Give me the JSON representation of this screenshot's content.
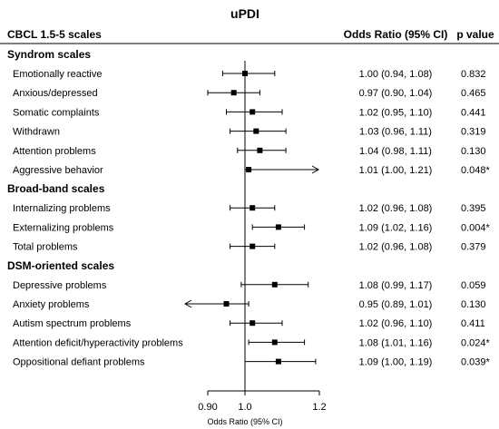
{
  "chart_data": {
    "type": "forest",
    "title": "uPDI",
    "columns": {
      "scales": "CBCL 1.5-5 scales",
      "or": "Odds Ratio (95% CI)",
      "p": "p value"
    },
    "xlabel": "Odds Ratio (95% CI)",
    "x_ticks": [
      "0.90",
      "1.0",
      "1.2"
    ],
    "x_tick_values": [
      0.9,
      1.0,
      1.2
    ],
    "xlim": [
      0.88,
      1.22
    ],
    "reference_line": 1.0,
    "groups": [
      {
        "name": "Syndrom scales",
        "rows": [
          {
            "label": "Emotionally reactive",
            "or": 1.0,
            "lo": 0.94,
            "hi": 1.08,
            "or_text": "1.00 (0.94, 1.08)",
            "p": "0.832"
          },
          {
            "label": "Anxious/depressed",
            "or": 0.97,
            "lo": 0.9,
            "hi": 1.04,
            "or_text": "0.97 (0.90, 1.04)",
            "p": "0.465"
          },
          {
            "label": "Somatic complaints",
            "or": 1.02,
            "lo": 0.95,
            "hi": 1.1,
            "or_text": "1.02 (0.95, 1.10)",
            "p": "0.441"
          },
          {
            "label": "Withdrawn",
            "or": 1.03,
            "lo": 0.96,
            "hi": 1.11,
            "or_text": "1.03 (0.96, 1.11)",
            "p": "0.319"
          },
          {
            "label": "Attention problems",
            "or": 1.04,
            "lo": 0.98,
            "hi": 1.11,
            "or_text": "1.04 (0.98, 1.11)",
            "p": "0.130"
          },
          {
            "label": "Aggressive behavior",
            "or": 1.01,
            "lo": 1.0,
            "hi": 1.21,
            "or_text": "1.01 (1.00, 1.21)",
            "p": "0.048*",
            "arrow": "right"
          }
        ]
      },
      {
        "name": "Broad-band scales",
        "rows": [
          {
            "label": "Internalizing problems",
            "or": 1.02,
            "lo": 0.96,
            "hi": 1.08,
            "or_text": "1.02 (0.96, 1.08)",
            "p": "0.395"
          },
          {
            "label": "Externalizing problems",
            "or": 1.09,
            "lo": 1.02,
            "hi": 1.16,
            "or_text": "1.09 (1.02, 1.16)",
            "p": "0.004*"
          },
          {
            "label": "Total problems",
            "or": 1.02,
            "lo": 0.96,
            "hi": 1.08,
            "or_text": "1.02 (0.96, 1.08)",
            "p": "0.379"
          }
        ]
      },
      {
        "name": "DSM-oriented scales",
        "rows": [
          {
            "label": "Depressive problems",
            "or": 1.08,
            "lo": 0.99,
            "hi": 1.17,
            "or_text": "1.08 (0.99, 1.17)",
            "p": "0.059"
          },
          {
            "label": "Anxiety problems",
            "or": 0.95,
            "lo": 0.89,
            "hi": 1.01,
            "or_text": "0.95 (0.89, 1.01)",
            "p": "0.130",
            "arrow": "left"
          },
          {
            "label": "Autism spectrum problems",
            "or": 1.02,
            "lo": 0.96,
            "hi": 1.1,
            "or_text": "1.02 (0.96, 1.10)",
            "p": "0.411"
          },
          {
            "label": "Attention deficit/hyperactivity problems",
            "or": 1.08,
            "lo": 1.01,
            "hi": 1.16,
            "or_text": "1.08 (1.01, 1.16)",
            "p": "0.024*"
          },
          {
            "label": "Oppositional defiant problems",
            "or": 1.09,
            "lo": 1.0,
            "hi": 1.19,
            "or_text": "1.09 (1.00, 1.19)",
            "p": "0.039*"
          }
        ]
      }
    ]
  }
}
